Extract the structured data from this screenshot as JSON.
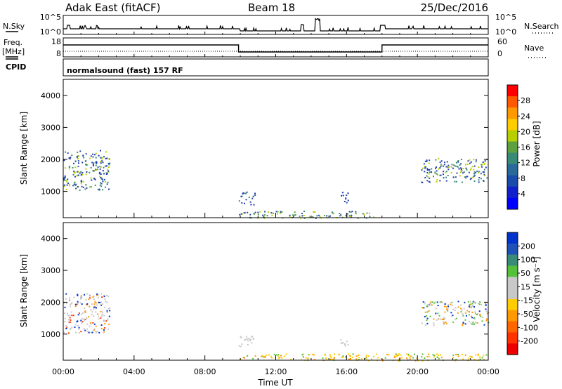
{
  "header": {
    "station": "Adak East (fitACF)",
    "beam": "Beam 18",
    "date": "25/Dec/2016"
  },
  "noise_panel": {
    "left_label": "N.Sky",
    "right_label": "N.Search",
    "tick_top": "10^5",
    "tick_bottom": "10^0"
  },
  "freq_panel": {
    "left_label_1": "Freq.",
    "left_label_2": "[MHz]",
    "right_label": "Nave",
    "left_tick_top": "18",
    "left_tick_bottom": "8",
    "right_tick_top": "60",
    "right_tick_bottom": "0"
  },
  "cpid_panel": {
    "label": "CPID",
    "program": "normalsound (fast) 157 RF"
  },
  "power_panel": {
    "ylabel": "Slant Range [km]",
    "colorbar_label": "Power [dB]",
    "colorbar_ticks": [
      "28",
      "24",
      "20",
      "16",
      "12",
      "8",
      "4"
    ],
    "colorbar_colors": [
      "#ff0000",
      "#ff5a00",
      "#ff9900",
      "#ffcc00",
      "#b7cf00",
      "#5da040",
      "#3a8a78",
      "#2a6a9a",
      "#1a4aaa",
      "#1020cc",
      "#0000ff"
    ]
  },
  "velocity_panel": {
    "ylabel": "Slant Range [km]",
    "colorbar_label": "Velocity [m s⁻¹]",
    "colorbar_ticks": [
      "200",
      "100",
      "50",
      "15",
      "-15",
      "-50",
      "-100",
      "-200"
    ],
    "colorbar_colors": [
      "#0033cc",
      "#1f52b8",
      "#3a8a78",
      "#55c03a",
      "#c8c8c8",
      "#c8c8c8",
      "#ffcc00",
      "#ff9900",
      "#ff6600",
      "#ff3300",
      "#ee0000"
    ]
  },
  "x_axis": {
    "label": "Time UT",
    "ticks": [
      "00:00",
      "04:00",
      "08:00",
      "12:00",
      "16:00",
      "20:00",
      "00:00"
    ]
  },
  "chart_data": {
    "type": "heatmap",
    "x_range_hours": [
      0,
      24
    ],
    "y_range_km": [
      180,
      4500
    ],
    "y_ticks": [
      1000,
      2000,
      3000,
      4000
    ],
    "power_clusters": [
      {
        "t0": 0.0,
        "t1": 2.6,
        "r0": 1050,
        "r1": 2300,
        "colors": [
          "#2a4aaa",
          "#1a3aaa",
          "#3a8a78",
          "#b7cf00"
        ]
      },
      {
        "t0": 9.9,
        "t1": 10.8,
        "r0": 600,
        "r1": 1000,
        "colors": [
          "#2a4aaa",
          "#3a8a78",
          "#1a3aaa"
        ]
      },
      {
        "t0": 15.6,
        "t1": 16.1,
        "r0": 650,
        "r1": 1000,
        "colors": [
          "#2a4aaa",
          "#1a3aaa"
        ]
      },
      {
        "t0": 20.2,
        "t1": 24.0,
        "r0": 1300,
        "r1": 2050,
        "colors": [
          "#2a4aaa",
          "#1a3aaa",
          "#3a8a78",
          "#b7cf00"
        ]
      },
      {
        "t0": 9.9,
        "t1": 17.5,
        "r0": 180,
        "r1": 400,
        "colors": [
          "#2a4aaa",
          "#3a8a78",
          "#5da040",
          "#b7cf00"
        ]
      }
    ],
    "velocity_clusters": [
      {
        "t0": 0.0,
        "t1": 2.6,
        "r0": 1050,
        "r1": 2300,
        "colors": [
          "#c8c8c8",
          "#c8c8c8",
          "#c8c8c8",
          "#ff9900",
          "#0033cc",
          "#ff3300"
        ]
      },
      {
        "t0": 9.9,
        "t1": 10.8,
        "r0": 600,
        "r1": 1000,
        "colors": [
          "#c8c8c8",
          "#c8c8c8"
        ]
      },
      {
        "t0": 15.6,
        "t1": 16.1,
        "r0": 650,
        "r1": 1000,
        "colors": [
          "#c8c8c8"
        ]
      },
      {
        "t0": 20.2,
        "t1": 24.0,
        "r0": 1300,
        "r1": 2050,
        "colors": [
          "#c8c8c8",
          "#c8c8c8",
          "#55c03a",
          "#0033cc",
          "#ff9900"
        ]
      },
      {
        "t0": 9.9,
        "t1": 24.0,
        "r0": 180,
        "r1": 400,
        "colors": [
          "#ffcc00",
          "#ff9900",
          "#ffcc00",
          "#55c03a"
        ]
      }
    ]
  }
}
